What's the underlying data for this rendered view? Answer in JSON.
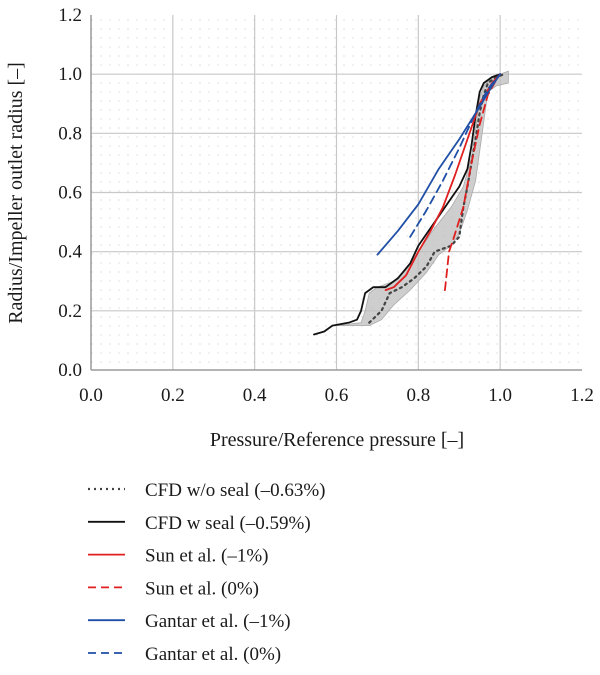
{
  "chart_data": {
    "type": "line",
    "xlabel": "Pressure/Reference pressure [–]",
    "ylabel": "Radius/Impeller outlet radius [–]",
    "xlim": [
      0.0,
      1.2
    ],
    "ylim": [
      0.0,
      1.2
    ],
    "xticks": [
      "0.0",
      "0.2",
      "0.4",
      "0.6",
      "0.8",
      "1.0",
      "1.2"
    ],
    "yticks": [
      "0.0",
      "0.2",
      "0.4",
      "0.6",
      "0.8",
      "1.0",
      "1.2"
    ],
    "grid": true,
    "legend_position": "bottom",
    "uncertainty_band": {
      "upper": [
        [
          0.6,
          0.15
        ],
        [
          0.66,
          0.16
        ],
        [
          0.67,
          0.2
        ],
        [
          0.68,
          0.26
        ],
        [
          0.7,
          0.28
        ],
        [
          0.74,
          0.3
        ],
        [
          0.77,
          0.34
        ],
        [
          0.8,
          0.4
        ],
        [
          0.84,
          0.48
        ],
        [
          0.88,
          0.55
        ],
        [
          0.91,
          0.62
        ],
        [
          0.93,
          0.72
        ],
        [
          0.94,
          0.82
        ],
        [
          0.95,
          0.92
        ],
        [
          0.96,
          0.96
        ],
        [
          0.98,
          0.99
        ],
        [
          1.02,
          1.01
        ]
      ],
      "lower": [
        [
          1.02,
          0.97
        ],
        [
          0.99,
          0.96
        ],
        [
          0.97,
          0.94
        ],
        [
          0.96,
          0.84
        ],
        [
          0.95,
          0.74
        ],
        [
          0.94,
          0.64
        ],
        [
          0.92,
          0.54
        ],
        [
          0.9,
          0.46
        ],
        [
          0.88,
          0.42
        ],
        [
          0.85,
          0.39
        ],
        [
          0.82,
          0.33
        ],
        [
          0.78,
          0.27
        ],
        [
          0.74,
          0.22
        ],
        [
          0.71,
          0.17
        ],
        [
          0.68,
          0.15
        ],
        [
          0.6,
          0.15
        ]
      ]
    },
    "series": [
      {
        "name": "CFD w/o seal (–0.63%)",
        "color": "#444444",
        "style": "dotted",
        "points": [
          [
            0.68,
            0.16
          ],
          [
            0.71,
            0.2
          ],
          [
            0.73,
            0.26
          ],
          [
            0.76,
            0.28
          ],
          [
            0.79,
            0.31
          ],
          [
            0.82,
            0.35
          ],
          [
            0.84,
            0.4
          ],
          [
            0.86,
            0.41
          ],
          [
            0.88,
            0.42
          ],
          [
            0.9,
            0.45
          ],
          [
            0.91,
            0.55
          ],
          [
            0.92,
            0.62
          ],
          [
            0.93,
            0.7
          ],
          [
            0.94,
            0.78
          ],
          [
            0.95,
            0.87
          ],
          [
            0.96,
            0.93
          ],
          [
            0.97,
            0.97
          ],
          [
            0.99,
            0.99
          ],
          [
            1.01,
            1.0
          ]
        ]
      },
      {
        "name": "CFD w seal (–0.59%)",
        "color": "#111111",
        "style": "solid",
        "points": [
          [
            0.545,
            0.12
          ],
          [
            0.57,
            0.13
          ],
          [
            0.59,
            0.15
          ],
          [
            0.63,
            0.16
          ],
          [
            0.65,
            0.17
          ],
          [
            0.66,
            0.2
          ],
          [
            0.67,
            0.26
          ],
          [
            0.69,
            0.28
          ],
          [
            0.72,
            0.28
          ],
          [
            0.75,
            0.31
          ],
          [
            0.78,
            0.36
          ],
          [
            0.8,
            0.42
          ],
          [
            0.82,
            0.46
          ],
          [
            0.84,
            0.5
          ],
          [
            0.86,
            0.54
          ],
          [
            0.88,
            0.58
          ],
          [
            0.9,
            0.62
          ],
          [
            0.92,
            0.68
          ],
          [
            0.93,
            0.76
          ],
          [
            0.94,
            0.86
          ],
          [
            0.95,
            0.94
          ],
          [
            0.96,
            0.97
          ],
          [
            0.98,
            0.99
          ],
          [
            1.0,
            1.0
          ]
        ]
      },
      {
        "name": "Sun et al. (–1%)",
        "color": "#e02020",
        "style": "solid",
        "points": [
          [
            0.72,
            0.27
          ],
          [
            0.74,
            0.28
          ],
          [
            0.77,
            0.32
          ],
          [
            0.8,
            0.4
          ],
          [
            0.83,
            0.47
          ],
          [
            0.86,
            0.55
          ],
          [
            0.89,
            0.66
          ],
          [
            0.92,
            0.78
          ],
          [
            0.95,
            0.9
          ],
          [
            0.98,
            0.97
          ],
          [
            1.0,
            1.0
          ]
        ]
      },
      {
        "name": "Sun et al. (0%)",
        "color": "#e02020",
        "style": "dashed",
        "points": [
          [
            0.865,
            0.27
          ],
          [
            0.875,
            0.4
          ],
          [
            0.885,
            0.44
          ],
          [
            0.91,
            0.55
          ],
          [
            0.93,
            0.7
          ],
          [
            0.95,
            0.83
          ],
          [
            0.97,
            0.93
          ],
          [
            0.99,
            0.98
          ],
          [
            1.0,
            1.0
          ]
        ]
      },
      {
        "name": "Gantar et al. (–1%)",
        "color": "#1f4fa6",
        "style": "solid",
        "points": [
          [
            0.7,
            0.39
          ],
          [
            0.75,
            0.47
          ],
          [
            0.8,
            0.56
          ],
          [
            0.85,
            0.68
          ],
          [
            0.9,
            0.78
          ],
          [
            0.95,
            0.89
          ],
          [
            0.98,
            0.96
          ],
          [
            1.0,
            1.0
          ]
        ]
      },
      {
        "name": "Gantar et al. (0%)",
        "color": "#1f4fa6",
        "style": "dashed",
        "points": [
          [
            0.78,
            0.45
          ],
          [
            0.82,
            0.54
          ],
          [
            0.86,
            0.64
          ],
          [
            0.9,
            0.75
          ],
          [
            0.94,
            0.87
          ],
          [
            0.97,
            0.95
          ],
          [
            1.0,
            1.0
          ]
        ]
      }
    ]
  }
}
